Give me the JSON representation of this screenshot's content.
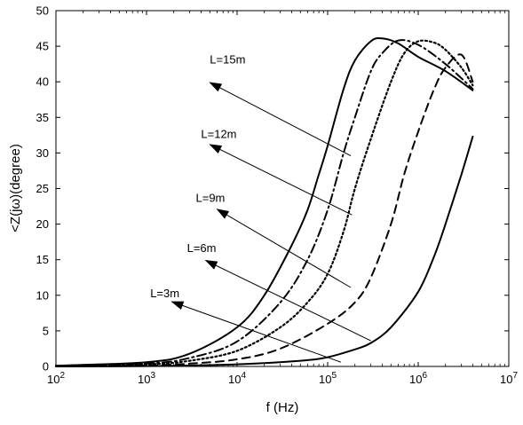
{
  "chart_data": {
    "type": "line",
    "title": "",
    "xlabel": "f (Hz)",
    "ylabel": "<Z(jω)(degree)",
    "xscale": "log",
    "xlim": [
      100,
      10000000
    ],
    "ylim": [
      0,
      50
    ],
    "grid": false,
    "legend": "none",
    "x_ticks": [
      {
        "value": 100,
        "base": "10",
        "exp": "2"
      },
      {
        "value": 1000,
        "base": "10",
        "exp": "3"
      },
      {
        "value": 10000,
        "base": "10",
        "exp": "4"
      },
      {
        "value": 100000,
        "base": "10",
        "exp": "5"
      },
      {
        "value": 1000000,
        "base": "10",
        "exp": "6"
      },
      {
        "value": 10000000,
        "base": "10",
        "exp": "7"
      }
    ],
    "y_ticks": [
      0,
      5,
      10,
      15,
      20,
      25,
      30,
      35,
      40,
      45,
      50
    ],
    "series": [
      {
        "label": "L=15m",
        "style": "solid",
        "x": [
          100,
          1000,
          3000,
          10000,
          20000,
          40000,
          60000,
          80000,
          100000,
          150000,
          200000,
          300000,
          400000,
          600000,
          1000000,
          2000000,
          4000000
        ],
        "y": [
          0.1,
          0.6,
          1.8,
          5.5,
          10,
          17,
          22,
          27,
          31,
          39,
          43,
          45.7,
          46.1,
          45.4,
          43.5,
          41.5,
          38.8
        ]
      },
      {
        "label": "L=12m",
        "style": "dashdot",
        "x": [
          100,
          1000,
          3000,
          10000,
          30000,
          60000,
          100000,
          150000,
          200000,
          300000,
          400000,
          600000,
          1000000,
          2000000,
          4000000
        ],
        "y": [
          0.1,
          0.4,
          1.2,
          3.5,
          9,
          15,
          22,
          30,
          35,
          41.5,
          44,
          45.8,
          45.2,
          42.5,
          39
        ]
      },
      {
        "label": "L=9m",
        "style": "dotted",
        "x": [
          100,
          1000,
          3000,
          10000,
          30000,
          60000,
          100000,
          150000,
          200000,
          300000,
          500000,
          700000,
          1000000,
          1500000,
          2000000,
          3000000,
          4000000
        ],
        "y": [
          0.05,
          0.3,
          0.8,
          2.2,
          5.5,
          9,
          13,
          19,
          25,
          32,
          40,
          44,
          45.7,
          45.5,
          44.5,
          42,
          39.5
        ]
      },
      {
        "label": "L=6m",
        "style": "dashed",
        "x": [
          100,
          1000,
          3000,
          10000,
          30000,
          100000,
          200000,
          300000,
          500000,
          700000,
          1000000,
          1500000,
          2000000,
          3000000,
          4000000
        ],
        "y": [
          0.02,
          0.15,
          0.4,
          1,
          2.5,
          6,
          9,
          12.5,
          20,
          27,
          33,
          39,
          42,
          43.8,
          40
        ]
      },
      {
        "label": "L=3m",
        "style": "solid",
        "x": [
          100,
          1000,
          10000,
          50000,
          100000,
          200000,
          300000,
          500000,
          1000000,
          1500000,
          2000000,
          3000000,
          4000000
        ],
        "y": [
          0,
          0.05,
          0.3,
          0.8,
          1.3,
          2.4,
          3.3,
          5.5,
          10.5,
          15.5,
          20,
          27,
          32.3
        ]
      }
    ],
    "annotations": [
      {
        "text": "L=15m",
        "label_x": 5000,
        "label_y": 42.6,
        "arrow_from_x": 180000,
        "arrow_from_y": 29.6,
        "arrow_to_x": 5000,
        "arrow_to_y": 39.9
      },
      {
        "text": "L=12m",
        "label_x": 4000,
        "label_y": 32.1,
        "arrow_from_x": 185000,
        "arrow_from_y": 21.3,
        "arrow_to_x": 5000,
        "arrow_to_y": 31.2
      },
      {
        "text": "L=9m",
        "label_x": 3500,
        "label_y": 23.1,
        "arrow_from_x": 180000,
        "arrow_from_y": 11.1,
        "arrow_to_x": 6000,
        "arrow_to_y": 22.1
      },
      {
        "text": "L=6m",
        "label_x": 2800,
        "label_y": 16.1,
        "arrow_from_x": 300000,
        "arrow_from_y": 3.6,
        "arrow_to_x": 4500,
        "arrow_to_y": 14.9
      },
      {
        "text": "L=3m",
        "label_x": 1100,
        "label_y": 9.7,
        "arrow_from_x": 140000,
        "arrow_from_y": 0.6,
        "arrow_to_x": 1900,
        "arrow_to_y": 9.1
      }
    ]
  }
}
